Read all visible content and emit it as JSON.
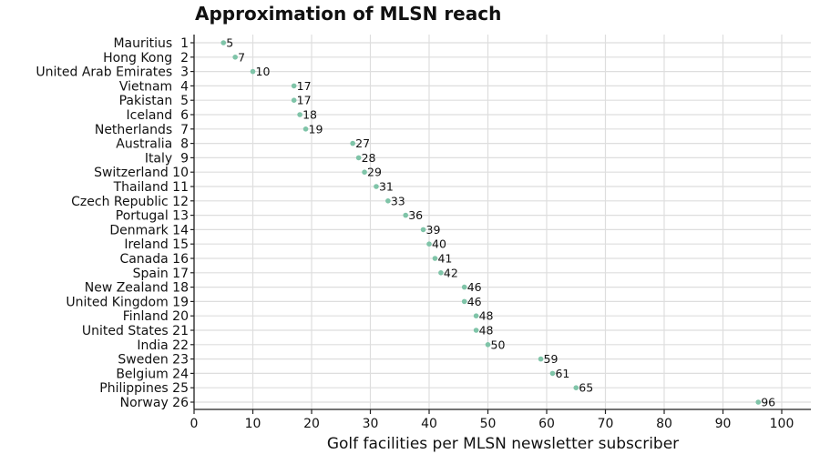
{
  "chart_data": {
    "type": "scatter",
    "title": "Approximation of MLSN reach",
    "xlabel": "Golf facilities per MLSN newsletter subscriber",
    "ylabel": "",
    "xlim": [
      0,
      104
    ],
    "x_ticks": [
      0,
      10,
      20,
      30,
      40,
      50,
      60,
      70,
      80,
      90,
      100
    ],
    "grid": true,
    "legend": "none",
    "point_color": "#7fc4a8",
    "categories": [
      "Mauritius  1",
      "Hong Kong  2",
      "United Arab Emirates  3",
      "Vietnam  4",
      "Pakistan  5",
      "Iceland  6",
      "Netherlands  7",
      "Australia  8",
      "Italy  9",
      "Switzerland 10",
      "Thailand 11",
      "Czech Republic 12",
      "Portugal 13",
      "Denmark 14",
      "Ireland 15",
      "Canada 16",
      "Spain 17",
      "New Zealand 18",
      "United Kingdom 19",
      "Finland 20",
      "United States 21",
      "India 22",
      "Sweden 23",
      "Belgium 24",
      "Philippines 25",
      "Norway 26"
    ],
    "values": [
      5,
      7,
      10,
      17,
      17,
      18,
      19,
      27,
      28,
      29,
      31,
      33,
      36,
      39,
      40,
      41,
      42,
      46,
      46,
      48,
      48,
      50,
      59,
      61,
      65,
      96
    ],
    "labels": [
      "5",
      "7",
      "10",
      "17",
      "17",
      "18",
      "19",
      "27",
      "28",
      "29",
      "31",
      "33",
      "36",
      "39",
      "40",
      "41",
      "42",
      "46",
      "46",
      "48",
      "48",
      "50",
      "59",
      "61",
      "65",
      "96"
    ]
  }
}
